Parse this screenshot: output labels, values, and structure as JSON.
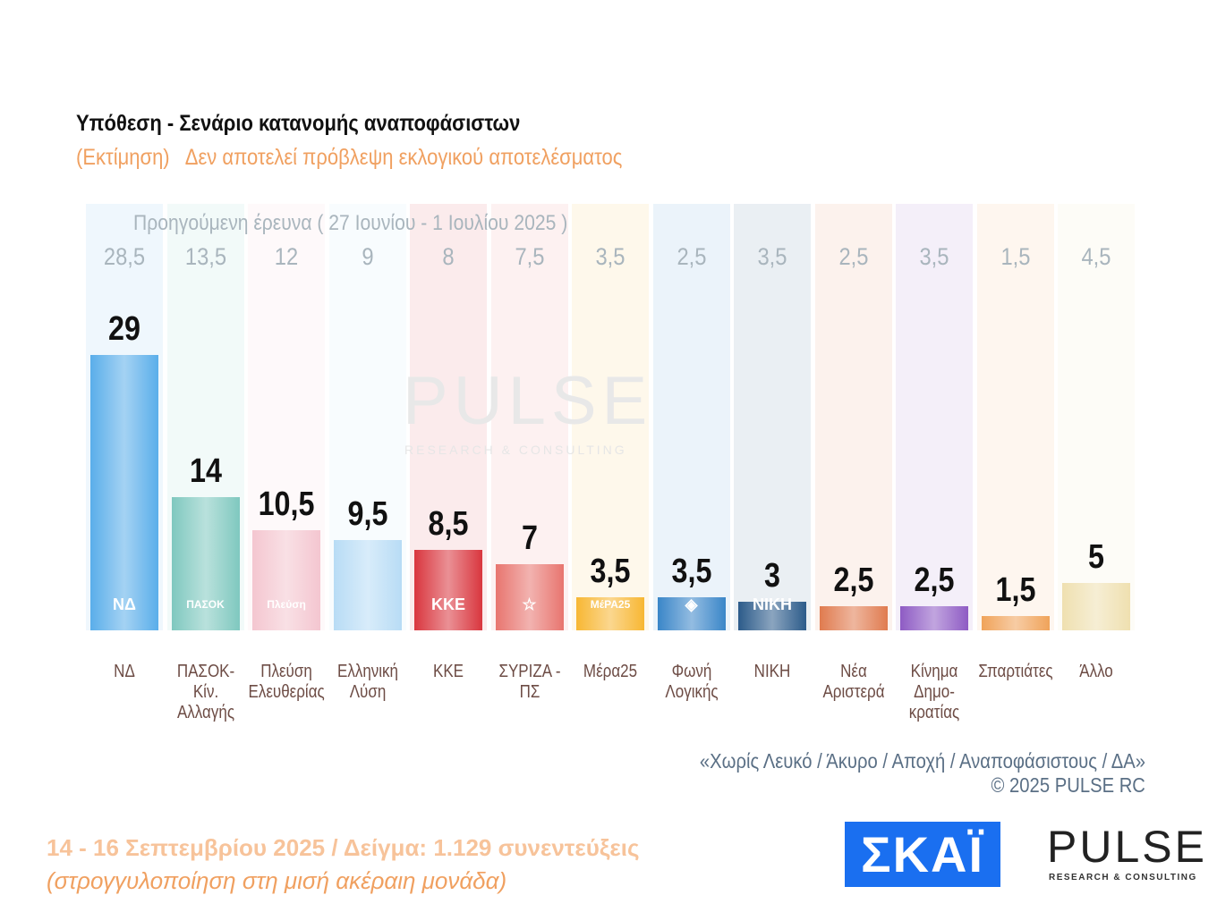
{
  "header": {
    "title": "Υπόθεση - Σενάριο κατανομής αναποφάσιστων",
    "subtitle": "(Εκτίμηση)   Δεν αποτελεί πρόβλεψη εκλογικού αποτελέσματος"
  },
  "chart_data": {
    "type": "bar",
    "title": "Υπόθεση - Σενάριο κατανομής αναποφάσιστων",
    "previous_caption": "Προηγούμενη έρευνα ( 27 Ιουνίου - 1 Ιουλίου 2025 )",
    "categories": [
      "ΝΔ",
      "ΠΑΣΟΚ-Κίν. Αλλαγής",
      "Πλεύση Ελευθερίας",
      "Ελληνική Λύση",
      "ΚΚΕ",
      "ΣΥΡΙΖΑ - ΠΣ",
      "Μέρα25",
      "Φωνή Λογικής",
      "ΝΙΚΗ",
      "Νέα Αριστερά",
      "Κίνημα Δημο- κρατίας",
      "Σπαρτιάτες",
      "Άλλο"
    ],
    "values": [
      29,
      14,
      10.5,
      9.5,
      8.5,
      7,
      3.5,
      3.5,
      3,
      2.5,
      2.5,
      1.5,
      5
    ],
    "value_labels": [
      "29",
      "14",
      "10,5",
      "9,5",
      "8,5",
      "7",
      "3,5",
      "3,5",
      "3",
      "2,5",
      "2,5",
      "1,5",
      "5"
    ],
    "previous_values": [
      28.5,
      13.5,
      12,
      9,
      8,
      7.5,
      3.5,
      2.5,
      3.5,
      2.5,
      3.5,
      1.5,
      4.5
    ],
    "previous_labels": [
      "28,5",
      "13,5",
      "12",
      "9",
      "8",
      "7,5",
      "3,5",
      "2,5",
      "3,5",
      "2,5",
      "3,5",
      "1,5",
      "4,5"
    ],
    "colors": [
      "#5aaeea",
      "#7fc8bf",
      "#f4c6d0",
      "#b8dcf5",
      "#d9363e",
      "#e8756f",
      "#f7b733",
      "#3a86c8",
      "#2c5b8a",
      "#e07b4f",
      "#8e5bc4",
      "#f0a35a",
      "#efe0b0"
    ],
    "logos": [
      "ΝΔ",
      "ΠΑΣΟΚ",
      "Πλεύση",
      "",
      "ΚΚΕ",
      "☆",
      "ΜέΡΑ25",
      "◈",
      "ΝΙΚΗ",
      "",
      "",
      "",
      ""
    ],
    "ylim": [
      0,
      30
    ],
    "grid": false,
    "legend": "none"
  },
  "watermark": {
    "brand": "PULSE",
    "sub": "RESEARCH & CONSULTING"
  },
  "footer": {
    "note": "«Χωρίς Λευκό / Άκυρο / Αποχή / Αναποφάσιστους / ΔΑ»",
    "copyright": "©  2025  PULSE RC",
    "dates": "14 - 16 Σεπτεμβρίου 2025  /  Δείγμα:  1.129 συνεντεύξεις",
    "rounding": "(στρογγυλοποίηση στη μισή ακέραιη μονάδα)",
    "skai_logo": "ΣΚΑΪ",
    "pulse_logo": "PULSE",
    "pulse_sub": "RESEARCH & CONSULTING"
  }
}
